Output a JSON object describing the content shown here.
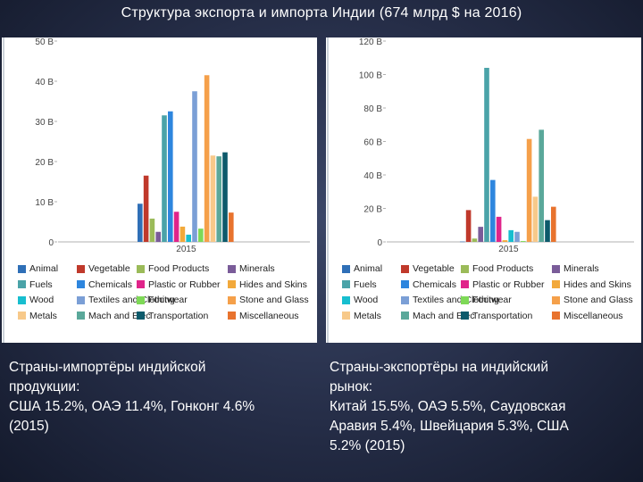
{
  "slide": {
    "title": "Структура экспорта и импорта Индии (674 млрд $ на 2016)"
  },
  "captions": {
    "left": {
      "line1": "Страны-импортёры индийской",
      "line2": "продукции:",
      "line3": "США 15.2%, ОАЭ 11.4%, Гонконг 4.6%",
      "line4": "(2015)"
    },
    "right": {
      "line1": "Страны-экспортёры на индийский",
      "line2": "рынок:",
      "line3": "Китай 15.5%, ОАЭ 5.5%, Саудовская",
      "line4": "Аравия 5.4%, Швейцария 5.3%, США",
      "line5": "5.2% (2015)"
    }
  },
  "legend": [
    {
      "label": "Animal",
      "color": "#2f6fb7"
    },
    {
      "label": "Vegetable",
      "color": "#c0392b"
    },
    {
      "label": "Food Products",
      "color": "#9bbb59"
    },
    {
      "label": "Minerals",
      "color": "#7a5c99"
    },
    {
      "label": "Fuels",
      "color": "#4aa3a8"
    },
    {
      "label": "Chemicals",
      "color": "#2e86de"
    },
    {
      "label": "Plastic or Rubber",
      "color": "#e0248a"
    },
    {
      "label": "Hides and Skins",
      "color": "#f2a93b"
    },
    {
      "label": "Wood",
      "color": "#17becf"
    },
    {
      "label": "Textiles and Clothing",
      "color": "#7b9fd6"
    },
    {
      "label": "Footwear",
      "color": "#7ed957"
    },
    {
      "label": "Stone and Glass",
      "color": "#f5a04a"
    },
    {
      "label": "Metals",
      "color": "#f7c98a"
    },
    {
      "label": "Mach and Elec",
      "color": "#5aa89a"
    },
    {
      "label": "Transportation",
      "color": "#0d5a6b"
    },
    {
      "label": "Miscellaneous",
      "color": "#e8732e"
    }
  ],
  "chart_data": [
    {
      "type": "bar",
      "categories": [
        "2015"
      ],
      "yticks": [
        "0",
        "10 B",
        "20 B",
        "30 B",
        "40 B",
        "50 B"
      ],
      "ylim": [
        0,
        50
      ],
      "series": [
        {
          "name": "Animal",
          "values": [
            9.5
          ]
        },
        {
          "name": "Vegetable",
          "values": [
            16.5
          ]
        },
        {
          "name": "Food Products",
          "values": [
            5.8
          ]
        },
        {
          "name": "Minerals",
          "values": [
            2.5
          ]
        },
        {
          "name": "Fuels",
          "values": [
            31.5
          ]
        },
        {
          "name": "Chemicals",
          "values": [
            32.5
          ]
        },
        {
          "name": "Plastic or Rubber",
          "values": [
            7.5
          ]
        },
        {
          "name": "Hides and Skins",
          "values": [
            3.8
          ]
        },
        {
          "name": "Wood",
          "values": [
            1.8
          ]
        },
        {
          "name": "Textiles and Clothing",
          "values": [
            37.5
          ]
        },
        {
          "name": "Footwear",
          "values": [
            3.3
          ]
        },
        {
          "name": "Stone and Glass",
          "values": [
            41.5
          ]
        },
        {
          "name": "Metals",
          "values": [
            21.5
          ]
        },
        {
          "name": "Mach and Elec",
          "values": [
            21.3
          ]
        },
        {
          "name": "Transportation",
          "values": [
            22.3
          ]
        },
        {
          "name": "Miscellaneous",
          "values": [
            7.3
          ]
        }
      ],
      "grid": false,
      "legend_position": "bottom"
    },
    {
      "type": "bar",
      "categories": [
        "2015"
      ],
      "yticks": [
        "0",
        "20 B",
        "40 B",
        "60 B",
        "80 B",
        "100 B",
        "120 B"
      ],
      "ylim": [
        0,
        120
      ],
      "series": [
        {
          "name": "Animal",
          "values": [
            0.2
          ]
        },
        {
          "name": "Vegetable",
          "values": [
            19
          ]
        },
        {
          "name": "Food Products",
          "values": [
            2
          ]
        },
        {
          "name": "Minerals",
          "values": [
            9
          ]
        },
        {
          "name": "Fuels",
          "values": [
            104
          ]
        },
        {
          "name": "Chemicals",
          "values": [
            37
          ]
        },
        {
          "name": "Plastic or Rubber",
          "values": [
            15
          ]
        },
        {
          "name": "Hides and Skins",
          "values": [
            1
          ]
        },
        {
          "name": "Wood",
          "values": [
            7
          ]
        },
        {
          "name": "Textiles and Clothing",
          "values": [
            6
          ]
        },
        {
          "name": "Footwear",
          "values": [
            0.5
          ]
        },
        {
          "name": "Stone and Glass",
          "values": [
            61.5
          ]
        },
        {
          "name": "Metals",
          "values": [
            27
          ]
        },
        {
          "name": "Mach and Elec",
          "values": [
            67
          ]
        },
        {
          "name": "Transportation",
          "values": [
            13
          ]
        },
        {
          "name": "Miscellaneous",
          "values": [
            21
          ]
        }
      ],
      "grid": false,
      "legend_position": "bottom"
    }
  ]
}
